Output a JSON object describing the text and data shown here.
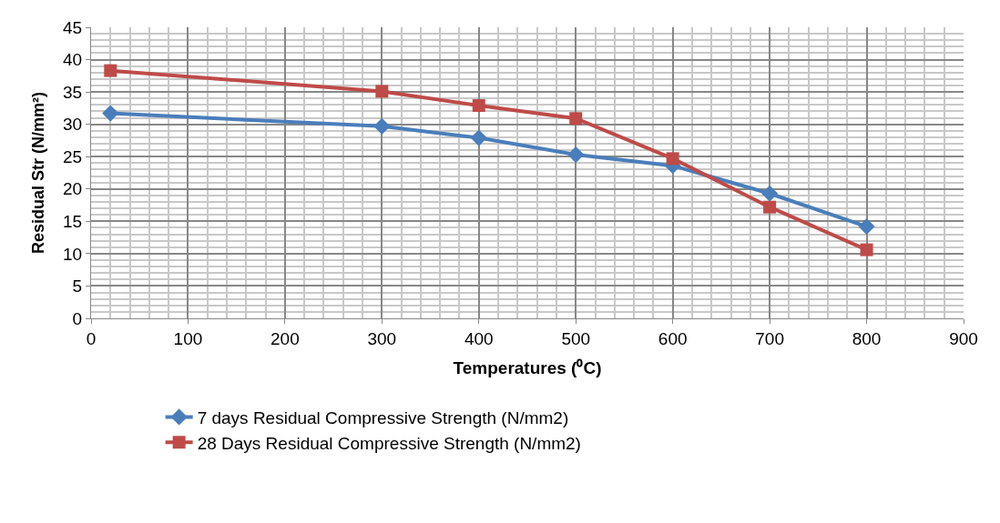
{
  "chart_data": {
    "type": "line",
    "xlabel": "Temperatures (⁰C)",
    "ylabel": "Residual Str (N/mm²)",
    "x": [
      20,
      300,
      400,
      500,
      600,
      700,
      800
    ],
    "series": [
      {
        "name": "7 days Residual Compressive Strength (N/mm2)",
        "color": "#4a7ebb",
        "marker": "diamond",
        "values": [
          31.7,
          29.7,
          27.9,
          25.3,
          23.6,
          19.3,
          14.2
        ]
      },
      {
        "name": "28 Days Residual Compressive Strength (N/mm2)",
        "color": "#be4b48",
        "marker": "square",
        "values": [
          38.3,
          35.1,
          32.9,
          30.9,
          24.7,
          17.2,
          10.6
        ]
      }
    ],
    "xlim": [
      0,
      900
    ],
    "xticks": [
      0,
      100,
      200,
      300,
      400,
      500,
      600,
      700,
      800,
      900
    ],
    "ylim": [
      0,
      45
    ],
    "yticks": [
      0,
      5,
      10,
      15,
      20,
      25,
      30,
      35,
      40,
      45
    ],
    "grid": true,
    "legend": "bottom",
    "line_style": "solid"
  }
}
